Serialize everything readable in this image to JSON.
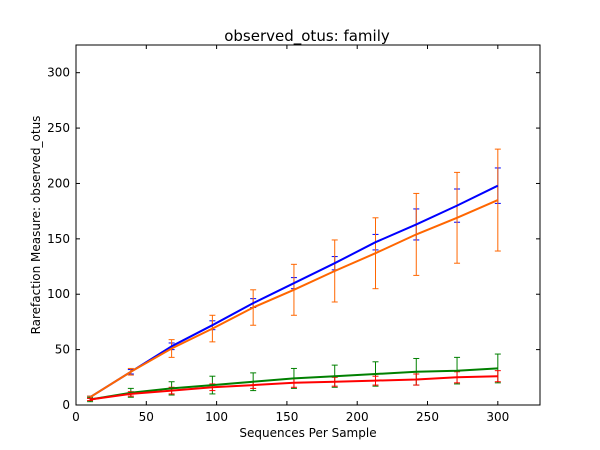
{
  "chart_data": {
    "type": "line",
    "title": "observed_otus: family",
    "xlabel": "Sequences Per Sample",
    "ylabel": "Rarefaction Measure: observed_otus",
    "xlim": [
      0,
      330
    ],
    "ylim": [
      0,
      325
    ],
    "xticks": [
      0,
      50,
      100,
      150,
      200,
      250,
      300
    ],
    "yticks": [
      0,
      50,
      100,
      150,
      200,
      250,
      300
    ],
    "xtick_labels": [
      "0",
      "50",
      "100",
      "150",
      "200",
      "250",
      "300"
    ],
    "ytick_labels": [
      "0",
      "50",
      "100",
      "150",
      "200",
      "250",
      "300"
    ],
    "grid": false,
    "legend": "none",
    "x": [
      10,
      39,
      68,
      97,
      126,
      155,
      184,
      213,
      242,
      271,
      300
    ],
    "series": [
      {
        "color": "#0000ff",
        "values": [
          7,
          30,
          53,
          72,
          92,
          110,
          128,
          147,
          163,
          180,
          198
        ],
        "errors": [
          1,
          2,
          3,
          4,
          4,
          5,
          6,
          7,
          14,
          15,
          16
        ]
      },
      {
        "color": "#ff6600",
        "values": [
          7,
          30,
          51,
          69,
          88,
          104,
          121,
          137,
          154,
          169,
          185
        ],
        "errors": [
          1,
          3,
          8,
          12,
          16,
          23,
          28,
          32,
          37,
          41,
          46
        ]
      },
      {
        "color": "#008000",
        "values": [
          5,
          11,
          15,
          18,
          21,
          24,
          26,
          28,
          30,
          31,
          33
        ],
        "errors": [
          2,
          4,
          6,
          8,
          8,
          9,
          10,
          11,
          12,
          12,
          13
        ]
      },
      {
        "color": "#ff0000",
        "values": [
          5,
          10,
          13,
          16,
          18,
          20,
          21,
          22,
          23,
          25,
          26
        ],
        "errors": [
          1,
          2,
          3,
          3,
          3,
          4,
          4,
          4,
          5,
          5,
          5
        ]
      }
    ]
  }
}
